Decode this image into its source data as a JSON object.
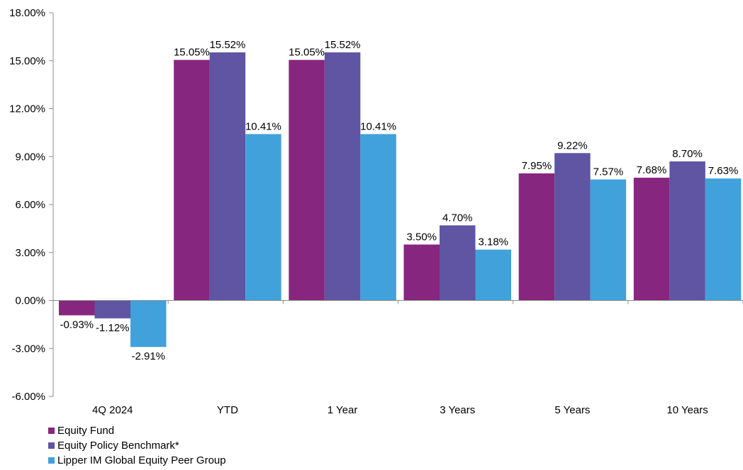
{
  "colors": {
    "equity_fund": "#87267F",
    "benchmark": "#5F55A3",
    "peer_group": "#41A1DA",
    "axis": "#8C8C8C"
  },
  "chart_data": {
    "type": "bar",
    "title": "",
    "xlabel": "",
    "ylabel": "",
    "ylim": [
      -6,
      18
    ],
    "y_ticks": [
      -6,
      -3,
      0,
      3,
      6,
      9,
      12,
      15,
      18
    ],
    "y_tick_labels": [
      "-6.00%",
      "-3.00%",
      "0.00%",
      "3.00%",
      "6.00%",
      "9.00%",
      "12.00%",
      "15.00%",
      "18.00%"
    ],
    "categories": [
      "4Q 2024",
      "YTD",
      "1 Year",
      "3 Years",
      "5 Years",
      "10 Years"
    ],
    "series": [
      {
        "name": "Equity Fund",
        "values": [
          -0.93,
          15.05,
          15.05,
          3.5,
          7.95,
          7.68
        ],
        "labels": [
          "-0.93%",
          "15.05%",
          "15.05%",
          "3.50%",
          "7.95%",
          "7.68%"
        ]
      },
      {
        "name": "Equity Policy Benchmark*",
        "values": [
          -1.12,
          15.52,
          15.52,
          4.7,
          9.22,
          8.7
        ],
        "labels": [
          "-1.12%",
          "15.52%",
          "15.52%",
          "4.70%",
          "9.22%",
          "8.70%"
        ]
      },
      {
        "name": "Lipper IM Global Equity Peer Group",
        "values": [
          -2.91,
          10.41,
          10.41,
          3.18,
          7.57,
          7.63
        ],
        "labels": [
          "-2.91%",
          "10.41%",
          "10.41%",
          "3.18%",
          "7.57%",
          "7.63%"
        ]
      }
    ],
    "grid": false,
    "legend_position": "bottom-left"
  },
  "legend": {
    "items": [
      {
        "label": "Equity Fund"
      },
      {
        "label": "Equity Policy Benchmark*"
      },
      {
        "label": "Lipper IM Global Equity Peer Group"
      }
    ]
  }
}
